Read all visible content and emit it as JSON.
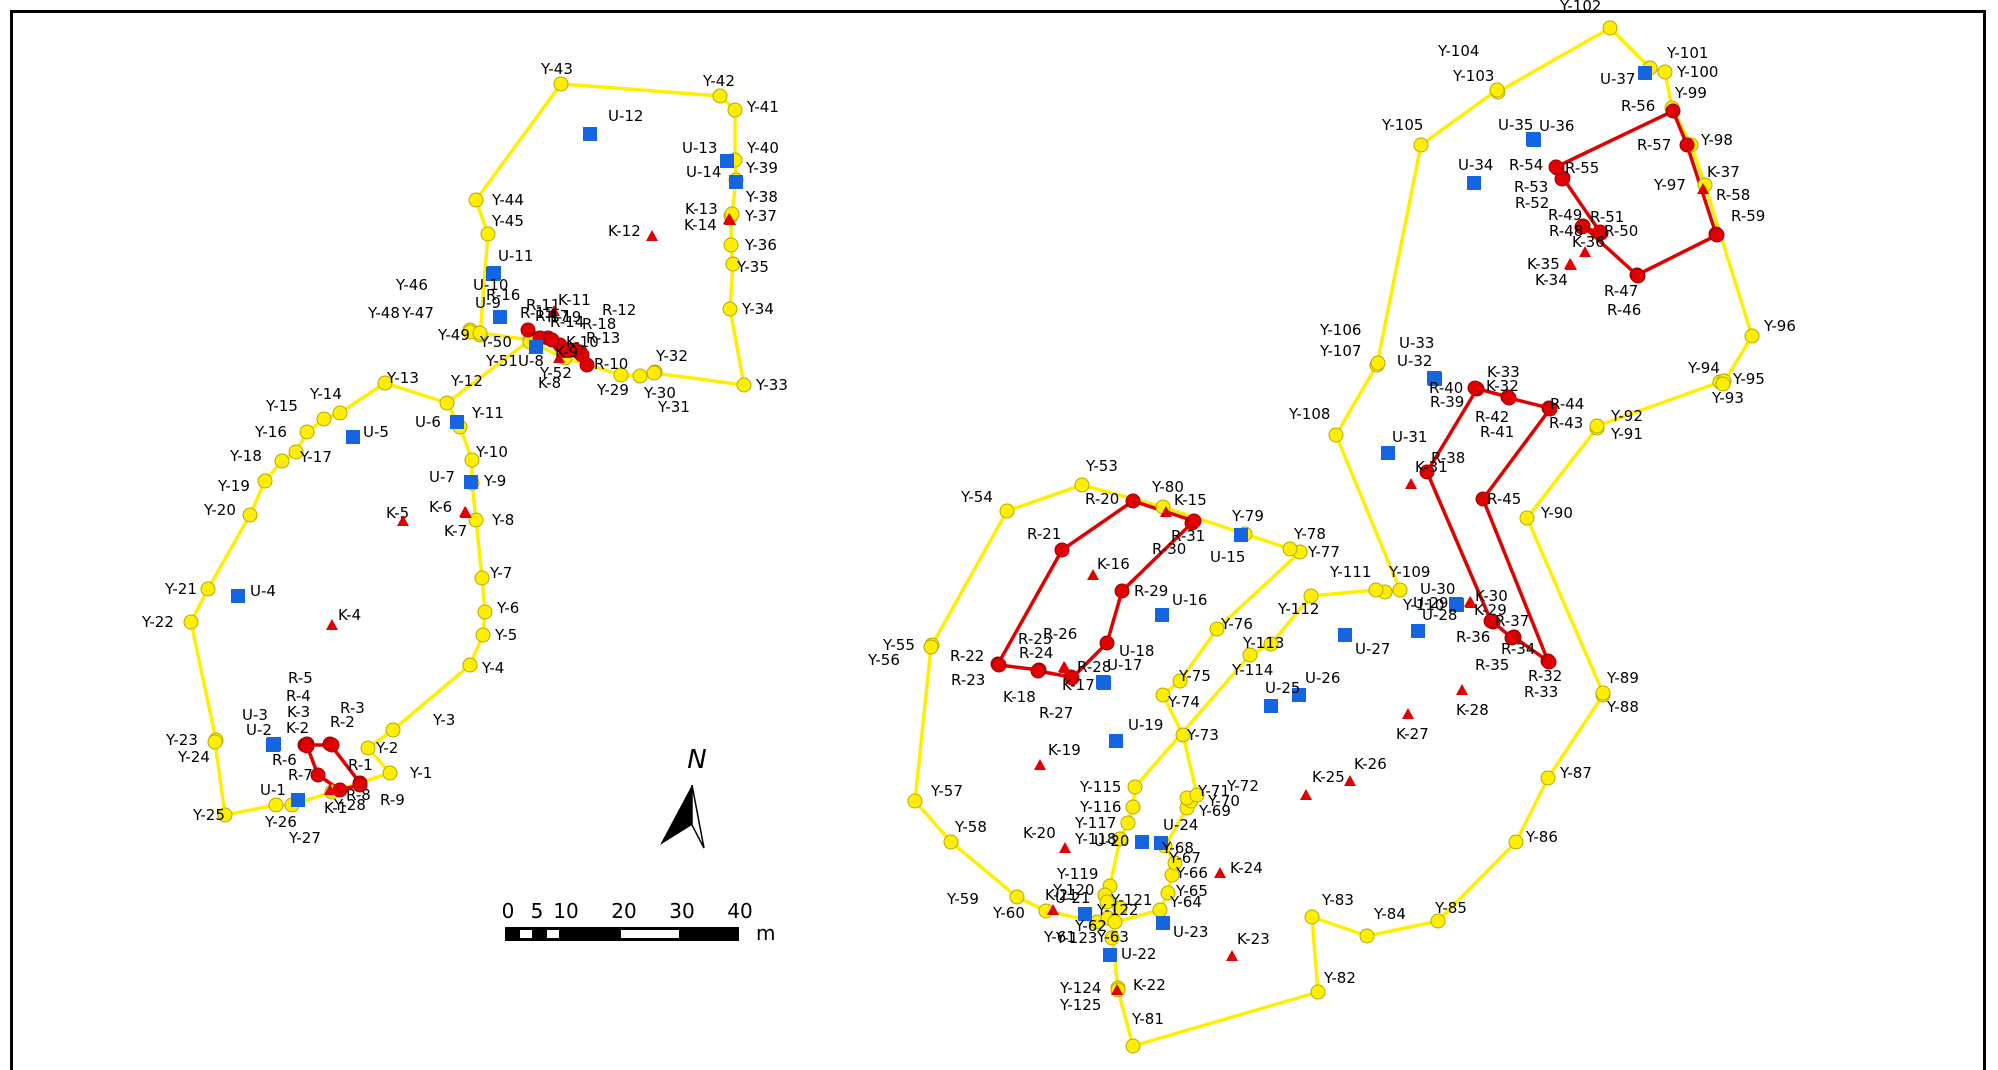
{
  "colors": {
    "yellow_route": "#ffee00",
    "yellow_stroke": "#b5a800",
    "red_route": "#e00000",
    "blue_marker": "#1565e0",
    "red_triangle": "#e00000"
  },
  "point_types": {
    "Y": "yellow-circle",
    "R": "red-circle",
    "U": "blue-square",
    "K": "red-triangle"
  },
  "points": [
    {
      "id": "Y-1"
    },
    {
      "id": "Y-2"
    },
    {
      "id": "Y-3"
    },
    {
      "id": "Y-4"
    },
    {
      "id": "Y-5"
    },
    {
      "id": "Y-6"
    },
    {
      "id": "Y-7"
    },
    {
      "id": "Y-8"
    },
    {
      "id": "Y-9"
    },
    {
      "id": "Y-10"
    },
    {
      "id": "Y-11"
    },
    {
      "id": "Y-12"
    },
    {
      "id": "Y-13"
    },
    {
      "id": "Y-14"
    },
    {
      "id": "Y-15"
    },
    {
      "id": "Y-16"
    },
    {
      "id": "Y-17"
    },
    {
      "id": "Y-18"
    },
    {
      "id": "Y-19"
    },
    {
      "id": "Y-20"
    },
    {
      "id": "Y-21"
    },
    {
      "id": "Y-22"
    },
    {
      "id": "Y-23"
    },
    {
      "id": "Y-24"
    },
    {
      "id": "Y-25"
    },
    {
      "id": "Y-26"
    },
    {
      "id": "Y-27"
    },
    {
      "id": "Y-28"
    },
    {
      "id": "Y-29"
    },
    {
      "id": "Y-30"
    },
    {
      "id": "Y-31"
    },
    {
      "id": "Y-32"
    },
    {
      "id": "Y-33"
    },
    {
      "id": "Y-34"
    },
    {
      "id": "Y-35"
    },
    {
      "id": "Y-36"
    },
    {
      "id": "Y-37"
    },
    {
      "id": "Y-38"
    },
    {
      "id": "Y-39"
    },
    {
      "id": "Y-40"
    },
    {
      "id": "Y-41"
    },
    {
      "id": "Y-42"
    },
    {
      "id": "Y-43"
    },
    {
      "id": "Y-44"
    },
    {
      "id": "Y-45"
    },
    {
      "id": "Y-46"
    },
    {
      "id": "Y-47"
    },
    {
      "id": "Y-48"
    },
    {
      "id": "Y-49"
    },
    {
      "id": "Y-50"
    },
    {
      "id": "Y-51"
    },
    {
      "id": "Y-52"
    },
    {
      "id": "Y-53"
    },
    {
      "id": "Y-54"
    },
    {
      "id": "Y-55"
    },
    {
      "id": "Y-56"
    },
    {
      "id": "Y-57"
    },
    {
      "id": "Y-58"
    },
    {
      "id": "Y-59"
    },
    {
      "id": "Y-60"
    },
    {
      "id": "Y-61"
    },
    {
      "id": "Y-62"
    },
    {
      "id": "Y-63"
    },
    {
      "id": "Y-64"
    },
    {
      "id": "Y-65"
    },
    {
      "id": "Y-66"
    },
    {
      "id": "Y-67"
    },
    {
      "id": "Y-68"
    },
    {
      "id": "Y-69"
    },
    {
      "id": "Y-70"
    },
    {
      "id": "Y-71"
    },
    {
      "id": "Y-72"
    },
    {
      "id": "Y-73"
    },
    {
      "id": "Y-74"
    },
    {
      "id": "Y-75"
    },
    {
      "id": "Y-76"
    },
    {
      "id": "Y-77"
    },
    {
      "id": "Y-78"
    },
    {
      "id": "Y-79"
    },
    {
      "id": "Y-80"
    },
    {
      "id": "Y-81"
    },
    {
      "id": "Y-82"
    },
    {
      "id": "Y-83"
    },
    {
      "id": "Y-84"
    },
    {
      "id": "Y-85"
    },
    {
      "id": "Y-86"
    },
    {
      "id": "Y-87"
    },
    {
      "id": "Y-88"
    },
    {
      "id": "Y-89"
    },
    {
      "id": "Y-90"
    },
    {
      "id": "Y-91"
    },
    {
      "id": "Y-92"
    },
    {
      "id": "Y-93"
    },
    {
      "id": "Y-94"
    },
    {
      "id": "Y-95"
    },
    {
      "id": "Y-96"
    },
    {
      "id": "Y-97"
    },
    {
      "id": "Y-98"
    },
    {
      "id": "Y-99"
    },
    {
      "id": "Y-100"
    },
    {
      "id": "Y-101"
    },
    {
      "id": "Y-102"
    },
    {
      "id": "Y-103"
    },
    {
      "id": "Y-104"
    },
    {
      "id": "Y-105"
    },
    {
      "id": "Y-106"
    },
    {
      "id": "Y-107"
    },
    {
      "id": "Y-108"
    },
    {
      "id": "Y-109"
    },
    {
      "id": "Y-110"
    },
    {
      "id": "Y-111"
    },
    {
      "id": "Y-112"
    },
    {
      "id": "Y-113"
    },
    {
      "id": "Y-114"
    },
    {
      "id": "Y-115"
    },
    {
      "id": "Y-116"
    },
    {
      "id": "Y-117"
    },
    {
      "id": "Y-118"
    },
    {
      "id": "Y-119"
    },
    {
      "id": "Y-120"
    },
    {
      "id": "Y-121"
    },
    {
      "id": "Y-122"
    },
    {
      "id": "Y-123"
    },
    {
      "id": "Y-124"
    },
    {
      "id": "Y-125"
    },
    {
      "id": "R-1"
    },
    {
      "id": "R-2"
    },
    {
      "id": "R-3"
    },
    {
      "id": "R-4"
    },
    {
      "id": "R-5"
    },
    {
      "id": "R-6"
    },
    {
      "id": "R-7"
    },
    {
      "id": "R-8"
    },
    {
      "id": "R-9"
    },
    {
      "id": "R-10"
    },
    {
      "id": "R-11"
    },
    {
      "id": "R-12"
    },
    {
      "id": "R-13"
    },
    {
      "id": "R-14"
    },
    {
      "id": "R-15"
    },
    {
      "id": "R-16"
    },
    {
      "id": "R-17"
    },
    {
      "id": "R-18"
    },
    {
      "id": "R-19"
    },
    {
      "id": "R-20"
    },
    {
      "id": "R-21"
    },
    {
      "id": "R-22"
    },
    {
      "id": "R-23"
    },
    {
      "id": "R-24"
    },
    {
      "id": "R-25"
    },
    {
      "id": "R-26"
    },
    {
      "id": "R-27"
    },
    {
      "id": "R-28"
    },
    {
      "id": "R-29"
    },
    {
      "id": "R-30"
    },
    {
      "id": "R-31"
    },
    {
      "id": "R-32"
    },
    {
      "id": "R-33"
    },
    {
      "id": "R-34"
    },
    {
      "id": "R-35"
    },
    {
      "id": "R-36"
    },
    {
      "id": "R-37"
    },
    {
      "id": "R-38"
    },
    {
      "id": "R-39"
    },
    {
      "id": "R-40"
    },
    {
      "id": "R-41"
    },
    {
      "id": "R-42"
    },
    {
      "id": "R-43"
    },
    {
      "id": "R-44"
    },
    {
      "id": "R-45"
    },
    {
      "id": "R-46"
    },
    {
      "id": "R-47"
    },
    {
      "id": "R-48"
    },
    {
      "id": "R-49"
    },
    {
      "id": "R-50"
    },
    {
      "id": "R-51"
    },
    {
      "id": "R-52"
    },
    {
      "id": "R-53"
    },
    {
      "id": "R-54"
    },
    {
      "id": "R-55"
    },
    {
      "id": "R-56"
    },
    {
      "id": "R-57"
    },
    {
      "id": "R-58"
    },
    {
      "id": "R-59"
    },
    {
      "id": "U-1"
    },
    {
      "id": "U-2"
    },
    {
      "id": "U-3"
    },
    {
      "id": "U-4"
    },
    {
      "id": "U-5"
    },
    {
      "id": "U-6"
    },
    {
      "id": "U-7"
    },
    {
      "id": "U-8"
    },
    {
      "id": "U-9"
    },
    {
      "id": "U-10"
    },
    {
      "id": "U-11"
    },
    {
      "id": "U-12"
    },
    {
      "id": "U-13"
    },
    {
      "id": "U-14"
    },
    {
      "id": "U-15"
    },
    {
      "id": "U-16"
    },
    {
      "id": "U-17"
    },
    {
      "id": "U-18"
    },
    {
      "id": "U-19"
    },
    {
      "id": "U-20"
    },
    {
      "id": "U-21"
    },
    {
      "id": "U-22"
    },
    {
      "id": "U-23"
    },
    {
      "id": "U-24"
    },
    {
      "id": "U-25"
    },
    {
      "id": "U-26"
    },
    {
      "id": "U-27"
    },
    {
      "id": "U-28"
    },
    {
      "id": "U-29"
    },
    {
      "id": "U-30"
    },
    {
      "id": "U-31"
    },
    {
      "id": "U-32"
    },
    {
      "id": "U-33"
    },
    {
      "id": "U-34"
    },
    {
      "id": "U-35"
    },
    {
      "id": "U-36"
    },
    {
      "id": "U-37"
    },
    {
      "id": "K-1"
    },
    {
      "id": "K-2"
    },
    {
      "id": "K-3"
    },
    {
      "id": "K-4"
    },
    {
      "id": "K-5"
    },
    {
      "id": "K-6"
    },
    {
      "id": "K-7"
    },
    {
      "id": "K-8"
    },
    {
      "id": "K-9"
    },
    {
      "id": "K-10"
    },
    {
      "id": "K-11"
    },
    {
      "id": "K-12"
    },
    {
      "id": "K-13"
    },
    {
      "id": "K-14"
    },
    {
      "id": "K-15"
    },
    {
      "id": "K-16"
    },
    {
      "id": "K-17"
    },
    {
      "id": "K-18"
    },
    {
      "id": "K-19"
    },
    {
      "id": "K-20"
    },
    {
      "id": "K-21"
    },
    {
      "id": "K-22"
    },
    {
      "id": "K-23"
    },
    {
      "id": "K-24"
    },
    {
      "id": "K-25"
    },
    {
      "id": "K-26"
    },
    {
      "id": "K-27"
    },
    {
      "id": "K-28"
    },
    {
      "id": "K-29"
    },
    {
      "id": "K-30"
    },
    {
      "id": "K-31"
    },
    {
      "id": "K-32"
    },
    {
      "id": "K-33"
    },
    {
      "id": "K-34"
    },
    {
      "id": "K-35"
    },
    {
      "id": "K-36"
    },
    {
      "id": "K-37"
    }
  ],
  "routes": [
    {
      "color": "yellow",
      "points": [
        "Y-1",
        "Y-2",
        "Y-3",
        "Y-4",
        "Y-5",
        "Y-6",
        "Y-7",
        "Y-8",
        "Y-9",
        "Y-10",
        "Y-11",
        "Y-12",
        "Y-13",
        "Y-14",
        "Y-15",
        "Y-16",
        "Y-17",
        "Y-18",
        "Y-19",
        "Y-20",
        "Y-21",
        "Y-22",
        "Y-23",
        "Y-24",
        "Y-25",
        "Y-26",
        "Y-27",
        "Y-28",
        "Y-1"
      ]
    },
    {
      "color": "yellow",
      "points": [
        "Y-12",
        "Y-50",
        "Y-49",
        "Y-48",
        "Y-47",
        "Y-46",
        "Y-45",
        "Y-44",
        "Y-43",
        "Y-42",
        "Y-41",
        "Y-40",
        "Y-39",
        "Y-38",
        "Y-37",
        "Y-36",
        "Y-35",
        "Y-34",
        "Y-33",
        "Y-32",
        "Y-31",
        "Y-30",
        "Y-29",
        "Y-52",
        "Y-51",
        "Y-50"
      ]
    },
    {
      "color": "yellow",
      "points": [
        "Y-53",
        "Y-54",
        "Y-55",
        "Y-56",
        "Y-57",
        "Y-58",
        "Y-59",
        "Y-60",
        "Y-61",
        "Y-62",
        "Y-63",
        "Y-123",
        "Y-124",
        "Y-125",
        "Y-81",
        "Y-82",
        "Y-83",
        "Y-84",
        "Y-85",
        "Y-86",
        "Y-87",
        "Y-88",
        "Y-89",
        "Y-90",
        "Y-91",
        "Y-92",
        "Y-93",
        "Y-94",
        "Y-95",
        "Y-96",
        "Y-97",
        "Y-98",
        "Y-99",
        "Y-100",
        "Y-101",
        "Y-102",
        "Y-103",
        "Y-104",
        "Y-105",
        "Y-106",
        "Y-107",
        "Y-108",
        "Y-109",
        "Y-110",
        "Y-111",
        "Y-112",
        "Y-113",
        "Y-114",
        "Y-115",
        "Y-116",
        "Y-117",
        "Y-118",
        "Y-119",
        "Y-120",
        "Y-121",
        "Y-122",
        "Y-63"
      ]
    },
    {
      "color": "yellow",
      "points": [
        "Y-53",
        "Y-80",
        "Y-79",
        "Y-78",
        "Y-77",
        "Y-76",
        "Y-75",
        "Y-74",
        "Y-73",
        "Y-72",
        "Y-71",
        "Y-70",
        "Y-69",
        "Y-68",
        "Y-67",
        "Y-66",
        "Y-65",
        "Y-64",
        "Y-63"
      ]
    },
    {
      "color": "red",
      "points": [
        "R-1",
        "R-2",
        "R-3",
        "R-4",
        "R-5",
        "R-6",
        "R-7",
        "R-8",
        "R-9",
        "R-1"
      ]
    },
    {
      "color": "red",
      "points": [
        "R-10",
        "R-11",
        "R-12",
        "R-13",
        "R-14",
        "R-15",
        "R-16",
        "R-17",
        "R-18",
        "R-19",
        "R-10"
      ]
    },
    {
      "color": "red",
      "points": [
        "R-20",
        "R-21",
        "R-22",
        "R-23",
        "R-24",
        "R-25",
        "R-26",
        "R-27",
        "R-28",
        "R-29",
        "R-30",
        "R-31",
        "R-20"
      ]
    },
    {
      "color": "red",
      "points": [
        "R-32",
        "R-33",
        "R-34",
        "R-35",
        "R-36",
        "R-37",
        "R-38",
        "R-39",
        "R-40",
        "R-41",
        "R-42",
        "R-43",
        "R-44",
        "R-45",
        "R-32"
      ]
    },
    {
      "color": "red",
      "points": [
        "R-46",
        "R-47",
        "R-48",
        "R-49",
        "R-50",
        "R-51",
        "R-52",
        "R-53",
        "R-54",
        "R-55",
        "R-56",
        "R-57",
        "R-58",
        "R-59",
        "R-46"
      ]
    }
  ],
  "north_arrow": {
    "label": "N"
  },
  "scale_bar": {
    "ticks": [
      "0",
      "5",
      "10",
      "20",
      "30",
      "40"
    ],
    "unit": "m"
  }
}
